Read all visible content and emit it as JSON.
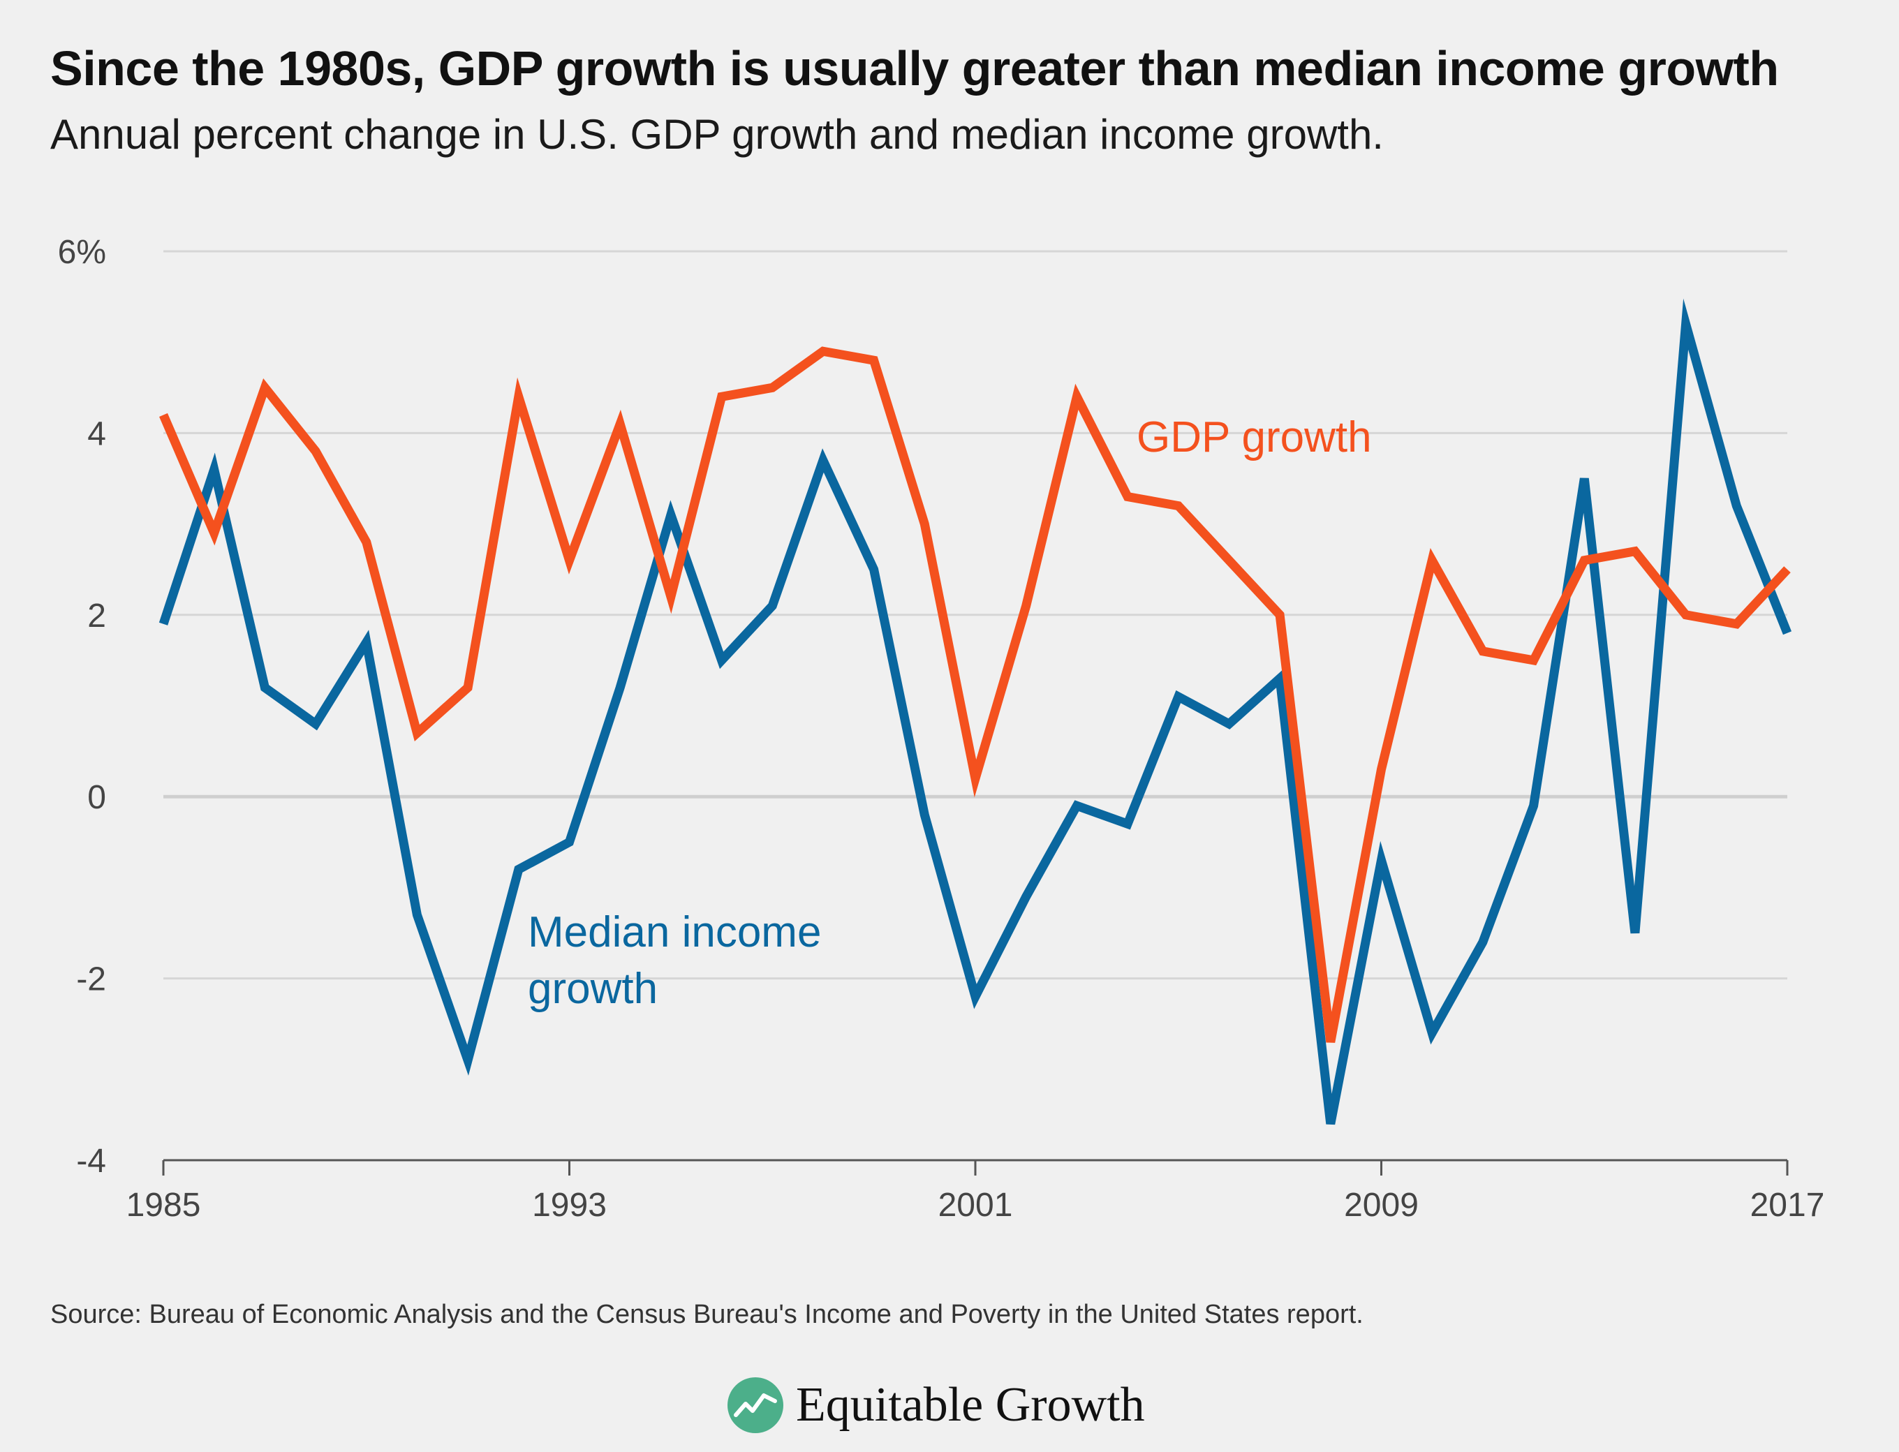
{
  "title": "Since the 1980s, GDP growth is usually greater than median income growth",
  "subtitle": "Annual percent change in U.S. GDP growth and median income growth.",
  "source": "Source: Bureau of Economic Analysis and the Census Bureau's Income and Poverty in the United States report.",
  "brand": {
    "name": "Equitable Growth",
    "logo_icon": "equitable-growth-logo-icon"
  },
  "colors": {
    "gdp": "#f4511e",
    "income": "#0a679f",
    "grid": "#d6d6d6",
    "zero": "#cfcfcf",
    "logo": "#4caf8a"
  },
  "chart_data": {
    "type": "line",
    "title": "Since the 1980s, GDP growth is usually greater than median income growth",
    "subtitle": "Annual percent change in U.S. GDP growth and median income growth.",
    "xlabel": "",
    "ylabel": "",
    "xlim": [
      1985,
      2017
    ],
    "ylim": [
      -4,
      6
    ],
    "x_ticks": [
      "1985",
      "1993",
      "2001",
      "2009",
      "2017"
    ],
    "y_ticks": [
      "6%",
      "4",
      "2",
      "0",
      "-2",
      "-4"
    ],
    "grid": true,
    "x": [
      1985,
      1986,
      1987,
      1988,
      1989,
      1990,
      1991,
      1992,
      1993,
      1994,
      1995,
      1996,
      1997,
      1998,
      1999,
      2000,
      2001,
      2002,
      2003,
      2004,
      2005,
      2006,
      2007,
      2008,
      2009,
      2010,
      2011,
      2012,
      2013,
      2014,
      2015,
      2016,
      2017
    ],
    "series": [
      {
        "name": "GDP growth",
        "color": "#f4511e",
        "values": [
          4.2,
          2.9,
          4.5,
          3.8,
          2.8,
          0.7,
          1.2,
          4.4,
          2.6,
          4.1,
          2.2,
          4.4,
          4.5,
          4.9,
          4.8,
          3.0,
          0.2,
          2.1,
          4.4,
          3.3,
          3.2,
          2.6,
          2.0,
          -2.7,
          0.3,
          2.6,
          1.6,
          1.5,
          2.6,
          2.7,
          2.0,
          1.9,
          2.5
        ]
      },
      {
        "name": "Median income growth",
        "color": "#0a679f",
        "values": [
          1.9,
          3.6,
          1.2,
          0.8,
          1.7,
          -1.3,
          -2.9,
          -0.8,
          -0.5,
          1.2,
          3.1,
          1.5,
          2.1,
          3.7,
          2.5,
          -0.2,
          -2.2,
          -1.1,
          -0.1,
          -0.3,
          1.1,
          0.8,
          1.3,
          -3.6,
          -0.7,
          -2.6,
          -1.6,
          -0.1,
          3.5,
          -1.5,
          5.2,
          3.2,
          1.8
        ]
      }
    ],
    "annotations": [
      {
        "series": "GDP growth",
        "text": "GDP growth"
      },
      {
        "series": "Median income growth",
        "lines": [
          "Median income",
          "growth"
        ]
      }
    ]
  }
}
